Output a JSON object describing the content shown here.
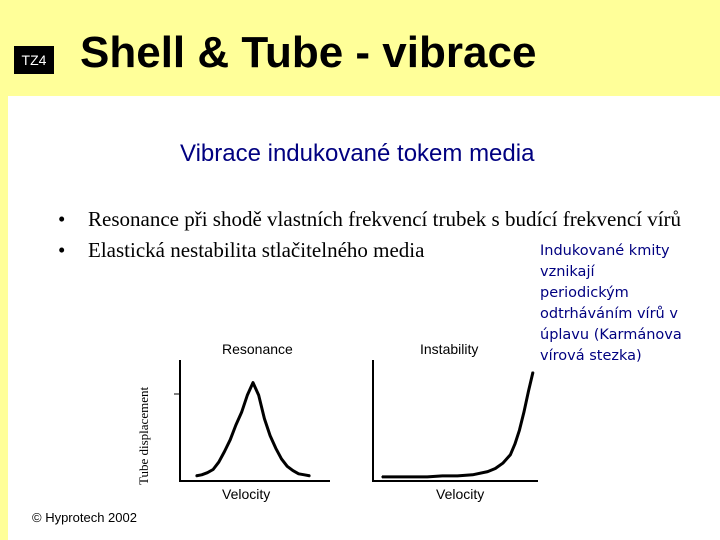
{
  "slide": {
    "badge": "TZ4",
    "title": "Shell & Tube - vibrace",
    "subtitle": "Vibrace indukované tokem media",
    "bullets": [
      "Resonance při shodě vlastních frekvencí trubek s budící frekvencí vírů",
      "Elastická nestabilita stlačitelného media"
    ],
    "side_note_lines": [
      "Indukované kmity",
      "vznikají",
      "periodickým",
      "odtrháváním vírů v",
      "úplavu (Karmánova",
      "vírová stezka)"
    ],
    "copyright": "© Hyprotech 2002",
    "colors": {
      "background": "#ffff99",
      "panel": "#ffffff",
      "accent_text": "#000080"
    }
  },
  "chart_data": [
    {
      "type": "line",
      "title": "Resonance",
      "xlabel": "Velocity",
      "ylabel": "Tube displacement",
      "ylim": [
        0,
        1
      ],
      "x": [
        0,
        0.05,
        0.1,
        0.15,
        0.2,
        0.25,
        0.3,
        0.35,
        0.4,
        0.45,
        0.5,
        0.55,
        0.6,
        0.65,
        0.7,
        0.75,
        0.8,
        0.85,
        0.9,
        0.95,
        1.0
      ],
      "series": [
        {
          "values": [
            0.02,
            0.03,
            0.05,
            0.08,
            0.15,
            0.25,
            0.36,
            0.5,
            0.62,
            0.78,
            0.9,
            0.78,
            0.56,
            0.4,
            0.28,
            0.18,
            0.11,
            0.07,
            0.04,
            0.03,
            0.02
          ]
        }
      ]
    },
    {
      "type": "line",
      "title": "Instability",
      "xlabel": "Velocity",
      "ylabel": "Tube displacement",
      "ylim": [
        0,
        1
      ],
      "x": [
        0,
        0.1,
        0.2,
        0.3,
        0.4,
        0.5,
        0.6,
        0.7,
        0.75,
        0.8,
        0.85,
        0.88,
        0.91,
        0.94,
        0.97,
        1.0
      ],
      "series": [
        {
          "values": [
            0.01,
            0.01,
            0.01,
            0.01,
            0.02,
            0.02,
            0.03,
            0.06,
            0.09,
            0.14,
            0.22,
            0.32,
            0.45,
            0.62,
            0.82,
            1.0
          ]
        }
      ]
    }
  ]
}
